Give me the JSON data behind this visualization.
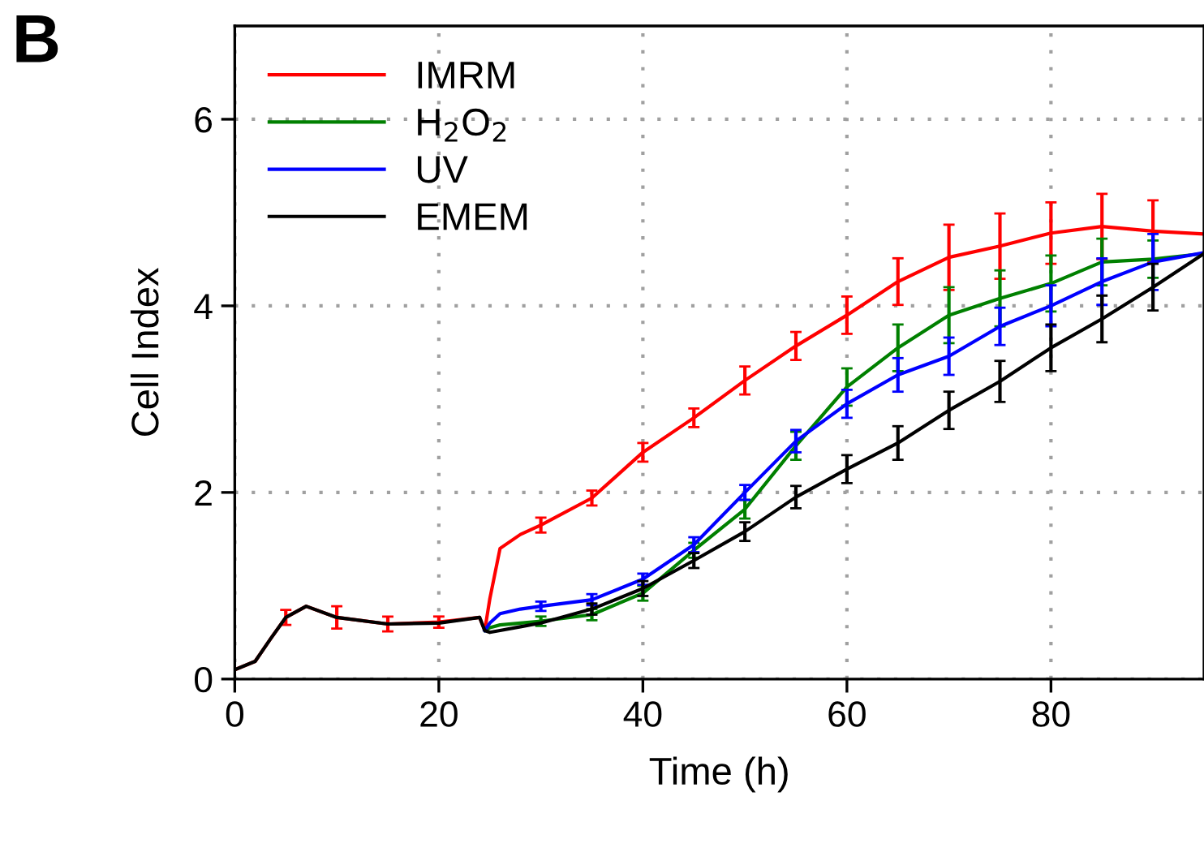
{
  "chart_data": {
    "type": "line",
    "xlabel": "Time (h)",
    "ylabel": "Cell Index",
    "annotations": [
      "B"
    ],
    "x": [
      0,
      2,
      3.5,
      5,
      7,
      10,
      15,
      20,
      24,
      24.5,
      25,
      26,
      28,
      30,
      35,
      40,
      45,
      50,
      55,
      60,
      65,
      70,
      75,
      80,
      85,
      90,
      95
    ],
    "series": [
      {
        "name": "IMRM",
        "color": "#ff0000",
        "values": [
          0.1,
          0.19,
          0.43,
          0.66,
          0.78,
          0.66,
          0.59,
          0.61,
          0.66,
          0.52,
          0.86,
          1.4,
          1.55,
          1.65,
          1.94,
          2.43,
          2.8,
          3.2,
          3.57,
          3.9,
          4.26,
          4.52,
          4.64,
          4.78,
          4.85,
          4.8,
          4.77
        ],
        "errors": [
          null,
          null,
          null,
          0.08,
          null,
          0.12,
          0.08,
          0.06,
          null,
          null,
          null,
          null,
          null,
          0.08,
          0.08,
          0.1,
          0.1,
          0.15,
          0.15,
          0.2,
          0.25,
          0.35,
          0.35,
          0.33,
          0.35,
          0.33,
          null
        ]
      },
      {
        "name": "H$_{2}$O$_{2}$",
        "color": "#008000",
        "values": [
          null,
          null,
          null,
          null,
          null,
          null,
          null,
          null,
          null,
          0.52,
          0.55,
          0.58,
          0.6,
          0.62,
          0.69,
          0.92,
          1.38,
          1.82,
          2.5,
          3.13,
          3.55,
          3.9,
          4.08,
          4.24,
          4.47,
          4.5,
          4.56
        ],
        "errors": [
          null,
          null,
          null,
          null,
          null,
          null,
          null,
          null,
          null,
          null,
          null,
          null,
          null,
          0.05,
          0.06,
          0.08,
          0.08,
          0.1,
          0.15,
          0.2,
          0.25,
          0.3,
          0.3,
          0.3,
          0.25,
          0.2,
          null
        ]
      },
      {
        "name": "UV",
        "color": "#0000ff",
        "values": [
          null,
          null,
          null,
          null,
          null,
          null,
          null,
          null,
          null,
          0.52,
          0.6,
          0.7,
          0.75,
          0.78,
          0.85,
          1.07,
          1.44,
          2.0,
          2.55,
          2.95,
          3.26,
          3.46,
          3.78,
          4.0,
          4.26,
          4.47,
          4.57
        ],
        "errors": [
          null,
          null,
          null,
          null,
          null,
          null,
          null,
          null,
          null,
          null,
          null,
          null,
          null,
          0.05,
          0.06,
          0.06,
          0.08,
          0.08,
          0.12,
          0.15,
          0.18,
          0.2,
          0.2,
          0.22,
          0.25,
          0.3,
          null
        ]
      },
      {
        "name": "EMEM",
        "color": "#000000",
        "values": [
          0.1,
          0.19,
          0.43,
          0.66,
          0.78,
          0.66,
          0.59,
          0.6,
          0.66,
          0.52,
          0.5,
          0.52,
          0.56,
          0.6,
          0.75,
          0.97,
          1.27,
          1.58,
          1.95,
          2.25,
          2.53,
          2.88,
          3.19,
          3.55,
          3.86,
          4.2,
          4.56
        ],
        "errors": [
          null,
          null,
          null,
          null,
          null,
          null,
          null,
          null,
          null,
          null,
          null,
          null,
          null,
          null,
          0.06,
          0.08,
          0.08,
          0.1,
          0.12,
          0.15,
          0.18,
          0.2,
          0.22,
          0.25,
          0.25,
          0.25,
          null
        ]
      }
    ],
    "xlim": [
      0,
      95
    ],
    "ylim": [
      0,
      7
    ],
    "xticks": [
      0,
      20,
      40,
      60,
      80
    ],
    "yticks": [
      0,
      2,
      4,
      6
    ],
    "grid": true,
    "legend": "top left",
    "line_style": "solid",
    "marker": "none"
  }
}
